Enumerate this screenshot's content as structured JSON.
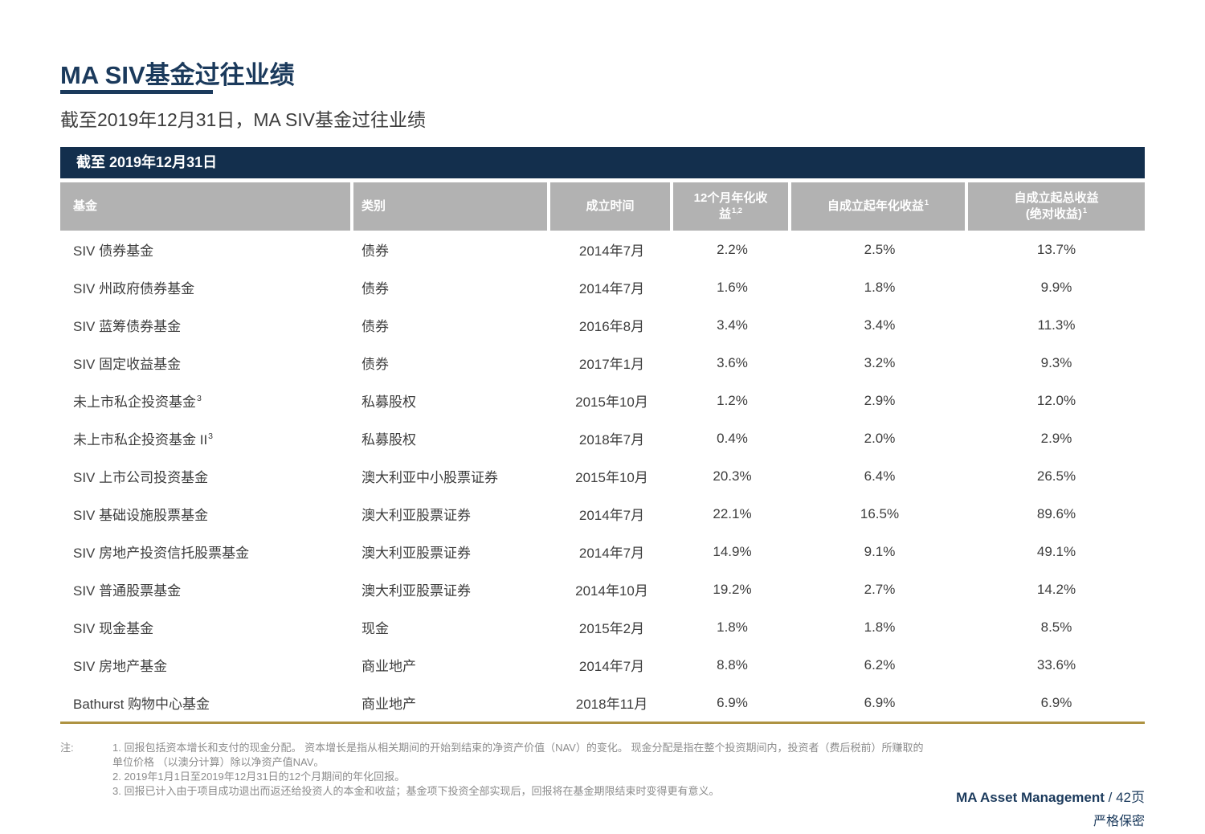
{
  "colors": {
    "navy_banner": "#132f4d",
    "navy_text": "#1b3a5c",
    "header_gray": "#b2b2b2",
    "body_text": "#3d3d3d",
    "footnote_gray": "#8c8c8c",
    "gold_rule": "#ae9342"
  },
  "page": {
    "title": "MA SIV基金过往业绩",
    "subtitle": "截至2019年12月31日，MA SIV基金过往业绩"
  },
  "table": {
    "banner": "截至 2019年12月31日",
    "columns": [
      {
        "label": "基金",
        "sup": "",
        "align": "left"
      },
      {
        "label": "类别",
        "sup": "",
        "align": "left"
      },
      {
        "label": "成立时间",
        "sup": "",
        "align": "center"
      },
      {
        "label": "12个月年化收\n益",
        "sup": "1,2",
        "align": "center"
      },
      {
        "label": "自成立起年化收益",
        "sup": "1",
        "align": "center"
      },
      {
        "label": "自成立起总收益\n(绝对收益)",
        "sup": "1",
        "align": "center"
      }
    ],
    "rows": [
      {
        "fund": "SIV 债券基金",
        "fund_sup": "",
        "category": "债券",
        "inception": "2014年7月",
        "return_12m": "2.2%",
        "return_annualized": "2.5%",
        "return_total": "13.7%"
      },
      {
        "fund": "SIV 州政府债券基金",
        "fund_sup": "",
        "category": "债券",
        "inception": "2014年7月",
        "return_12m": "1.6%",
        "return_annualized": "1.8%",
        "return_total": "9.9%"
      },
      {
        "fund": "SIV 蓝筹债券基金",
        "fund_sup": "",
        "category": "债券",
        "inception": "2016年8月",
        "return_12m": "3.4%",
        "return_annualized": "3.4%",
        "return_total": "11.3%"
      },
      {
        "fund": "SIV 固定收益基金",
        "fund_sup": "",
        "category": "债券",
        "inception": "2017年1月",
        "return_12m": "3.6%",
        "return_annualized": "3.2%",
        "return_total": "9.3%"
      },
      {
        "fund": "未上市私企投资基金",
        "fund_sup": "3",
        "category": "私募股权",
        "inception": "2015年10月",
        "return_12m": "1.2%",
        "return_annualized": "2.9%",
        "return_total": "12.0%"
      },
      {
        "fund": "未上市私企投资基金 II",
        "fund_sup": "3",
        "category": "私募股权",
        "inception": "2018年7月",
        "return_12m": "0.4%",
        "return_annualized": "2.0%",
        "return_total": "2.9%"
      },
      {
        "fund": "SIV 上市公司投资基金",
        "fund_sup": "",
        "category": "澳大利亚中小股票证券",
        "inception": "2015年10月",
        "return_12m": "20.3%",
        "return_annualized": "6.4%",
        "return_total": "26.5%"
      },
      {
        "fund": "SIV 基础设施股票基金",
        "fund_sup": "",
        "category": "澳大利亚股票证券",
        "inception": "2014年7月",
        "return_12m": "22.1%",
        "return_annualized": "16.5%",
        "return_total": "89.6%"
      },
      {
        "fund": "SIV 房地产投资信托股票基金",
        "fund_sup": "",
        "category": "澳大利亚股票证券",
        "inception": "2014年7月",
        "return_12m": "14.9%",
        "return_annualized": "9.1%",
        "return_total": "49.1%"
      },
      {
        "fund": "SIV 普通股票基金",
        "fund_sup": "",
        "category": "澳大利亚股票证券",
        "inception": "2014年10月",
        "return_12m": "19.2%",
        "return_annualized": "2.7%",
        "return_total": "14.2%"
      },
      {
        "fund": "SIV 现金基金",
        "fund_sup": "",
        "category": "现金",
        "inception": "2015年2月",
        "return_12m": "1.8%",
        "return_annualized": "1.8%",
        "return_total": "8.5%"
      },
      {
        "fund": "SIV 房地产基金",
        "fund_sup": "",
        "category": "商业地产",
        "inception": "2014年7月",
        "return_12m": "8.8%",
        "return_annualized": "6.2%",
        "return_total": "33.6%"
      },
      {
        "fund": "Bathurst 购物中心基金",
        "fund_sup": "",
        "category": "商业地产",
        "inception": "2018年11月",
        "return_12m": "6.9%",
        "return_annualized": "6.9%",
        "return_total": "6.9%"
      }
    ]
  },
  "footnotes": {
    "label": "注:",
    "lines": [
      "1. 回报包括资本增长和支付的现金分配。 资本增长是指从相关期间的开始到结束的净资产价值（NAV）的变化。 现金分配是指在整个投资期间内，投资者（费后税前）所赚取的",
      "单位价格 （以澳分计算）除以净资产值NAV。",
      "2. 2019年1月1日至2019年12月31日的12个月期间的年化回报。",
      "3. 回报已计入由于项目成功退出而返还给投资人的本金和收益；基金项下投资全部实现后，回报将在基金期限结束时变得更有意义。"
    ]
  },
  "footer": {
    "brand": "MA Asset Management",
    "page_suffix": " / 42页",
    "confidential": "严格保密"
  }
}
